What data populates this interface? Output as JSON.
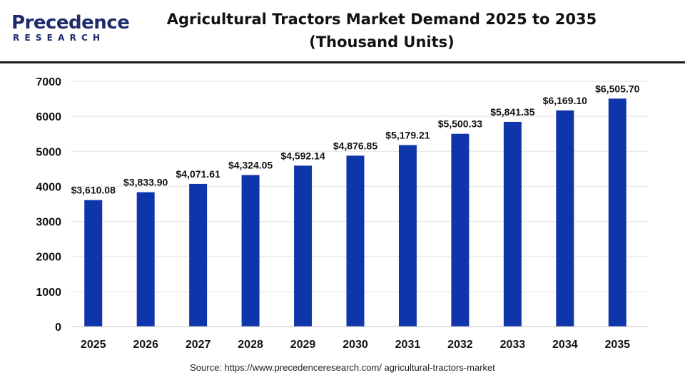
{
  "brand": {
    "name": "Precedence",
    "tagline": "RESEARCH",
    "primary_color": "#1f2b6b",
    "accent_color": "#2a7de1"
  },
  "source_text": "Source: https://www.precedenceresearch.com/ agricultural-tractors-market",
  "chart_data": {
    "type": "bar",
    "title": "Agricultural Tractors Market Demand 2025 to 2035",
    "subtitle": "(Thousand Units)",
    "xlabel": "",
    "ylabel": "",
    "categories": [
      "2025",
      "2026",
      "2027",
      "2028",
      "2029",
      "2030",
      "2031",
      "2032",
      "2033",
      "2034",
      "2035"
    ],
    "values": [
      3610.08,
      3833.9,
      4071.61,
      4324.05,
      4592.14,
      4876.85,
      5179.21,
      5500.33,
      5841.35,
      6169.1,
      6505.7
    ],
    "data_labels": [
      "$3,610.08",
      "$3,833.90",
      "$4,071.61",
      "$4,324.05",
      "$4,592.14",
      "$4,876.85",
      "$5,179.21",
      "$5,500.33",
      "$5,841.35",
      "$6,169.10",
      "$6,505.70"
    ],
    "y_ticks": [
      "0",
      "1000",
      "2000",
      "3000",
      "4000",
      "5000",
      "6000",
      "7000"
    ],
    "ylim": [
      0,
      7000
    ],
    "grid": true,
    "legend": "none",
    "bar_color": "#0f35ab"
  }
}
